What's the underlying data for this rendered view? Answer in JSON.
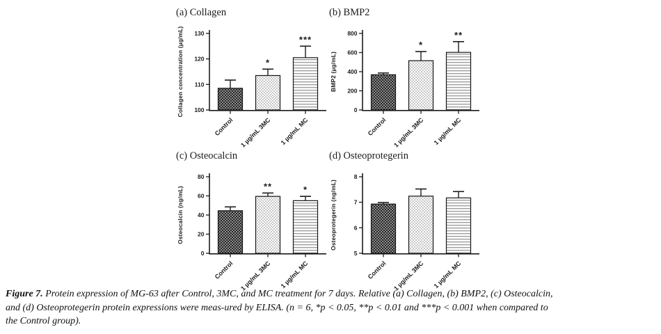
{
  "chart_data": [
    {
      "id": "a",
      "type": "bar",
      "title": "(a) Collagen",
      "ylabel": "Collagen concentration (µg/mL)",
      "ylim": [
        100,
        130
      ],
      "yticks": [
        100,
        110,
        120,
        130
      ],
      "categories": [
        "Control",
        "1 µg/mL 3MC",
        "1 µg/mL MC"
      ],
      "values": [
        108.5,
        113.5,
        120.5
      ],
      "errors": [
        3.2,
        2.5,
        4.5
      ],
      "significance": [
        "",
        "*",
        "***"
      ],
      "legend": "none",
      "grid": false
    },
    {
      "id": "b",
      "type": "bar",
      "title": "(b) BMP2",
      "ylabel": "BMP2 (µg/mL)",
      "ylim": [
        0,
        800
      ],
      "yticks": [
        0,
        200,
        400,
        600,
        800
      ],
      "categories": [
        "Control",
        "1 µg/mL 3MC",
        "1 µg/mL MC"
      ],
      "values": [
        368,
        515,
        602
      ],
      "errors": [
        18,
        95,
        112
      ],
      "significance": [
        "",
        "*",
        "**"
      ],
      "legend": "none",
      "grid": false
    },
    {
      "id": "c",
      "type": "bar",
      "title": "(c) Osteocalcin",
      "ylabel": "Osteocalcin (ng/mL)",
      "ylim": [
        0,
        80
      ],
      "yticks": [
        0,
        20,
        40,
        60,
        80
      ],
      "categories": [
        "Control",
        "1 µg/mL 3MC",
        "1 µg/mL MC"
      ],
      "values": [
        44.5,
        59.5,
        55
      ],
      "errors": [
        4,
        3.5,
        4.5
      ],
      "significance": [
        "",
        "**",
        "*"
      ],
      "legend": "none",
      "grid": false
    },
    {
      "id": "d",
      "type": "bar",
      "title": "(d) Osteoprotegerin",
      "ylabel": "Osteoprotegerin (ng/mL)",
      "ylim": [
        5,
        8
      ],
      "yticks": [
        5,
        6,
        7,
        8
      ],
      "categories": [
        "Control",
        "1 µg/mL 3MC",
        "1 µg/mL MC"
      ],
      "values": [
        6.93,
        7.24,
        7.17
      ],
      "errors": [
        0.06,
        0.28,
        0.25
      ],
      "significance": [
        "",
        "",
        ""
      ],
      "legend": "none",
      "grid": false
    }
  ],
  "style": {
    "bar_patterns": [
      "dark-checkerboard",
      "light-checkerboard",
      "horizontal-lines"
    ],
    "ink_color": "#1b1b1b",
    "bar_edge_color": "#161616",
    "dark_check_bg": "#8c8c8c",
    "dark_check_fg": "#262626",
    "light_check_fg": "#c7c7c7",
    "hline_fg": "#9f9f9f",
    "background": "#ffffff"
  },
  "caption": {
    "label": "Figure 7.",
    "line1": "Protein expression of MG-63 after Control, 3MC, and MC treatment for 7 days. Relative (a) Collagen, (b) BMP2, (c) Osteocalcin,",
    "line2": "and (d) Osteoprotegerin protein expressions were meas-ured by ELISA. (n = 6, *p < 0.05, **p < 0.01 and ***p < 0.001 when compared to",
    "line3": "the Control group)."
  }
}
